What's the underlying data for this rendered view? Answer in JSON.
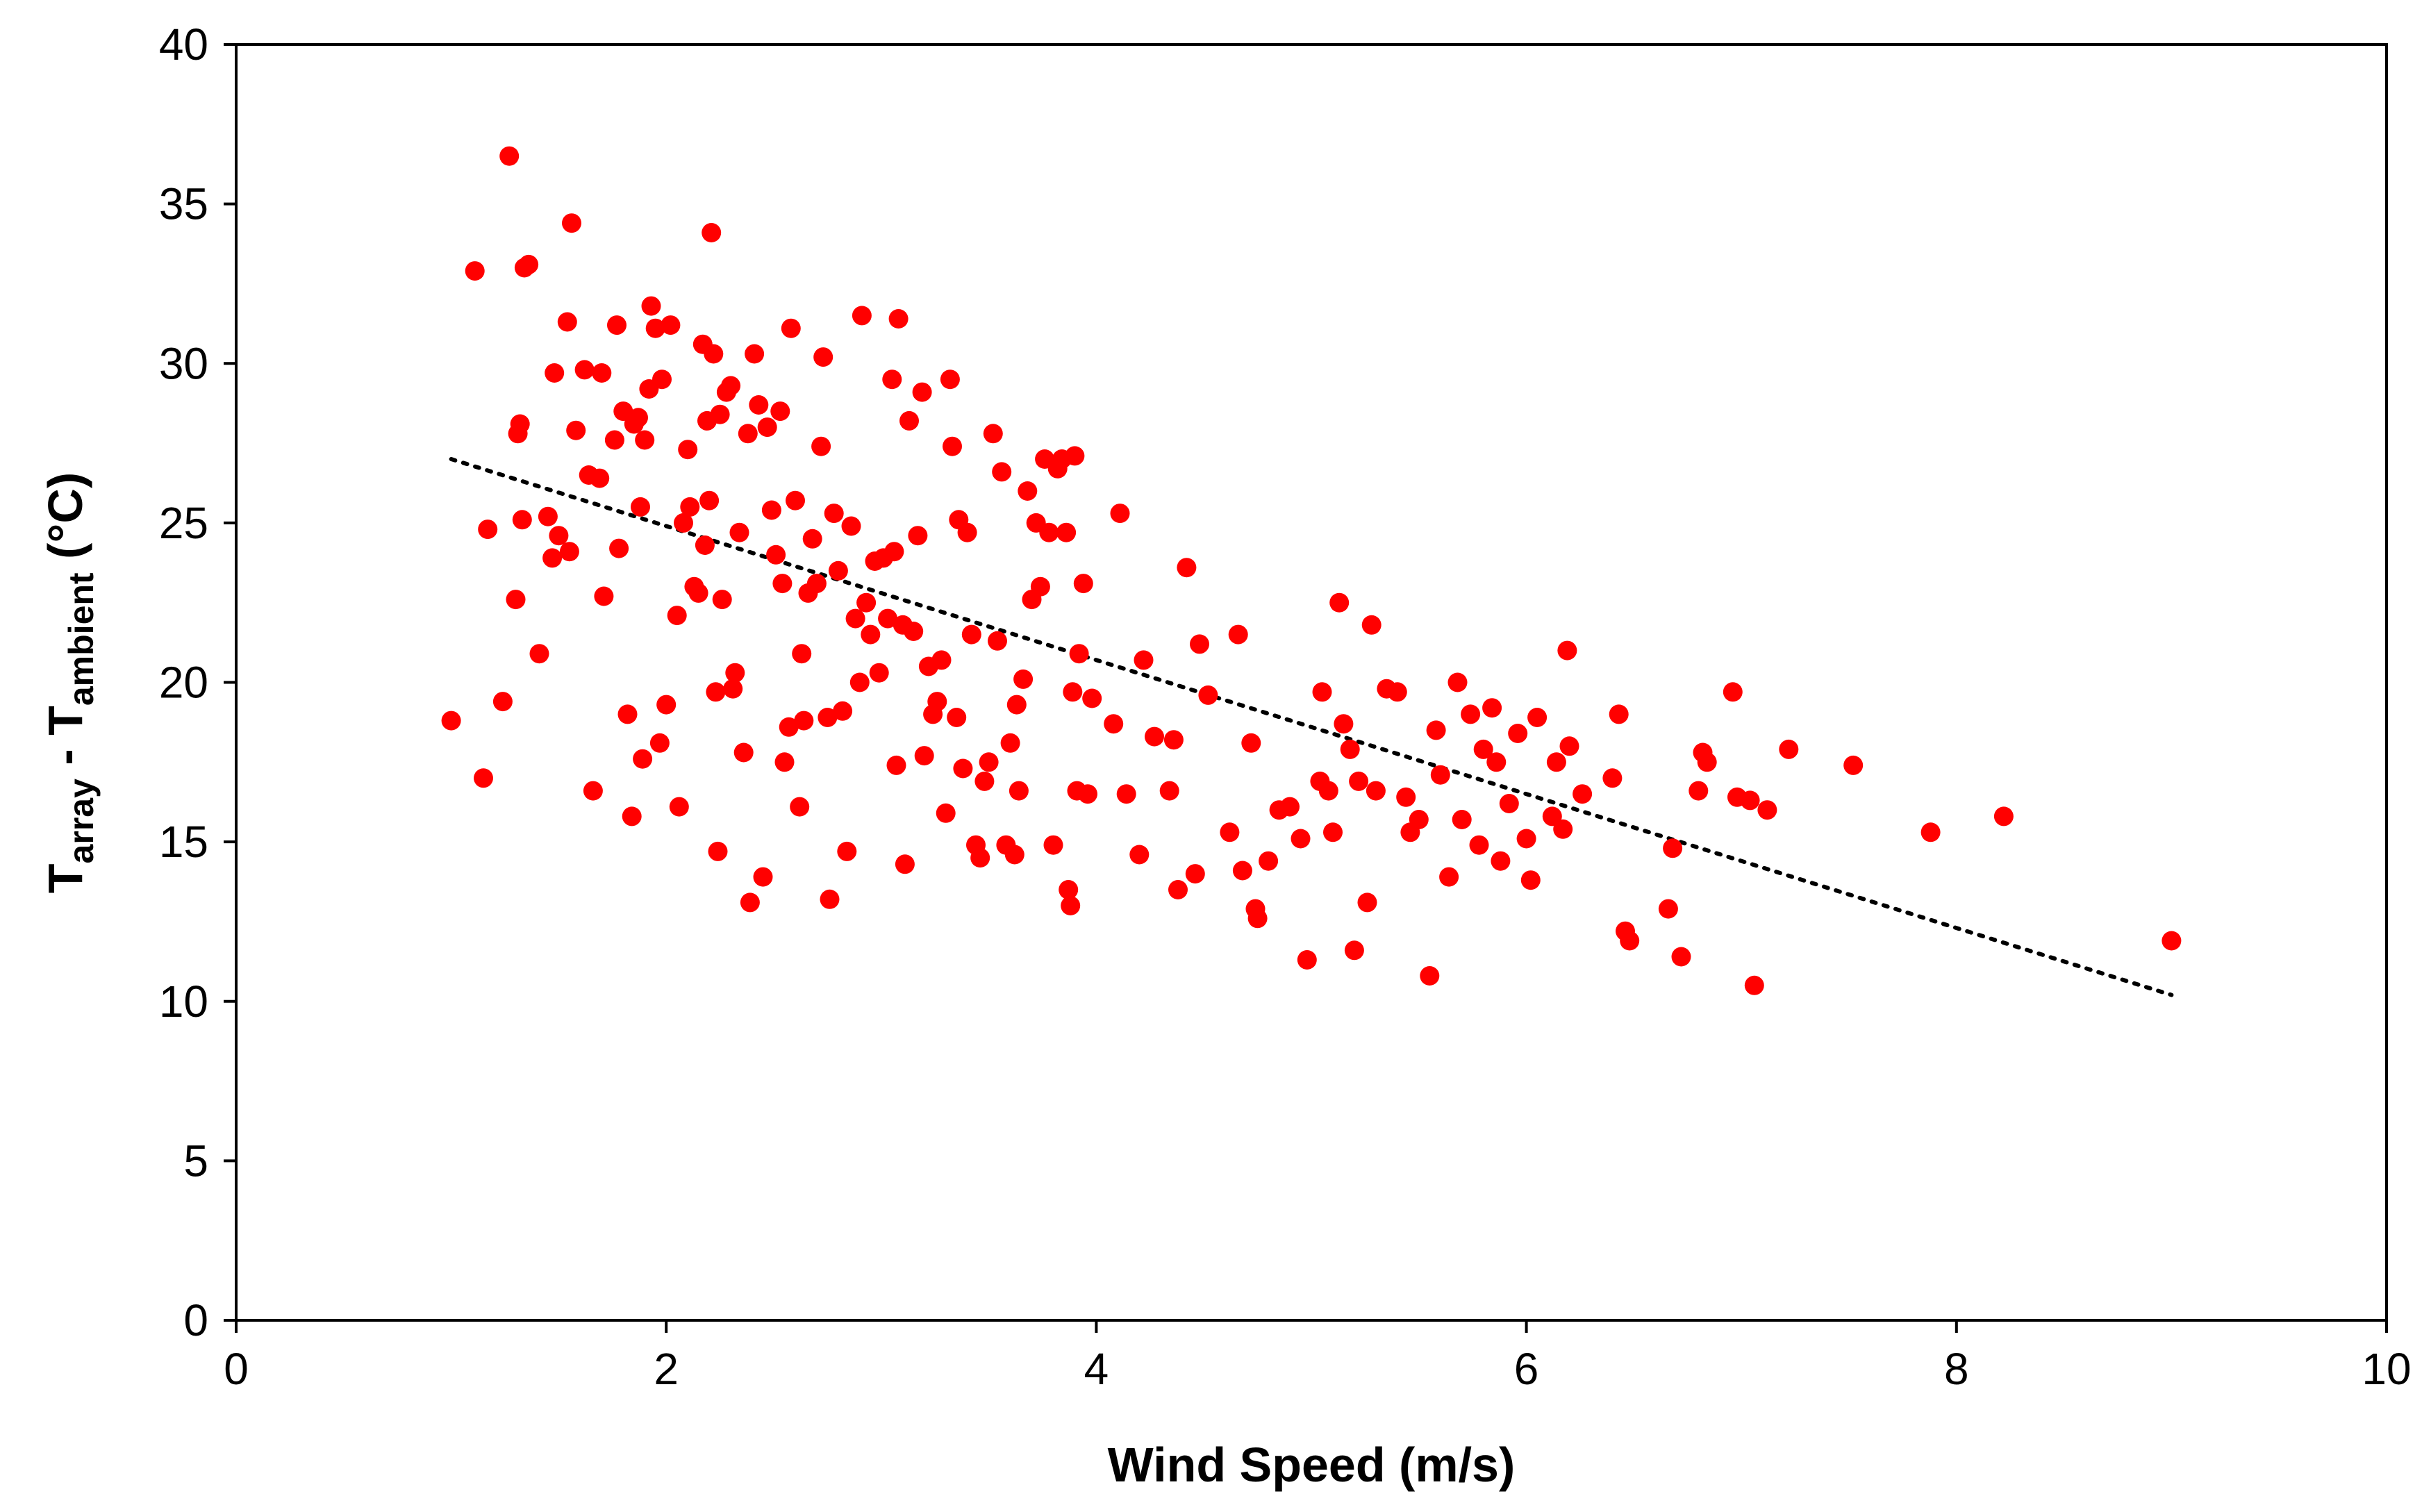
{
  "chart_data": {
    "type": "scatter",
    "xlabel": "Wind Speed (m/s)",
    "ylabel": {
      "parts": [
        {
          "text": "T",
          "sub": false
        },
        {
          "text": "array",
          "sub": true
        },
        {
          "text": " - T",
          "sub": false
        },
        {
          "text": "ambient",
          "sub": true
        },
        {
          "text": " (°C)",
          "sub": false
        }
      ]
    },
    "xlim": [
      0,
      10
    ],
    "ylim": [
      0,
      40
    ],
    "xticks": [
      "0",
      "2",
      "4",
      "6",
      "8",
      "10"
    ],
    "yticks": [
      "0",
      "5",
      "10",
      "15",
      "20",
      "25",
      "30",
      "35",
      "40"
    ],
    "grid": false,
    "legend": "none",
    "colors": {
      "points": "#ff0000",
      "trendline": "#000000"
    },
    "trendline": {
      "style": "dotted",
      "x": [
        1.0,
        9.0
      ],
      "y": [
        27.0,
        10.2
      ]
    },
    "series": [
      {
        "points": [
          [
            1.0,
            18.8
          ],
          [
            1.11,
            32.9
          ],
          [
            1.15,
            17.0
          ],
          [
            1.17,
            24.8
          ],
          [
            1.24,
            19.4
          ],
          [
            1.27,
            36.5
          ],
          [
            1.3,
            22.6
          ],
          [
            1.31,
            27.8
          ],
          [
            1.32,
            28.1
          ],
          [
            1.33,
            25.1
          ],
          [
            1.34,
            33.0
          ],
          [
            1.36,
            33.1
          ],
          [
            1.41,
            20.9
          ],
          [
            1.45,
            25.2
          ],
          [
            1.47,
            23.9
          ],
          [
            1.48,
            29.7
          ],
          [
            1.5,
            24.6
          ],
          [
            1.54,
            31.3
          ],
          [
            1.55,
            24.1
          ],
          [
            1.56,
            34.4
          ],
          [
            1.58,
            27.9
          ],
          [
            1.62,
            29.8
          ],
          [
            1.64,
            26.5
          ],
          [
            1.66,
            16.6
          ],
          [
            1.69,
            26.4
          ],
          [
            1.7,
            29.7
          ],
          [
            1.71,
            22.7
          ],
          [
            1.76,
            27.6
          ],
          [
            1.77,
            31.2
          ],
          [
            1.78,
            24.2
          ],
          [
            1.8,
            28.5
          ],
          [
            1.82,
            19.0
          ],
          [
            1.84,
            15.8
          ],
          [
            1.85,
            28.1
          ],
          [
            1.87,
            28.3
          ],
          [
            1.88,
            25.5
          ],
          [
            1.89,
            17.6
          ],
          [
            1.9,
            27.6
          ],
          [
            1.92,
            29.2
          ],
          [
            1.93,
            31.8
          ],
          [
            1.95,
            31.1
          ],
          [
            1.97,
            18.1
          ],
          [
            1.98,
            29.5
          ],
          [
            2.0,
            19.3
          ],
          [
            2.02,
            31.2
          ],
          [
            2.05,
            22.1
          ],
          [
            2.06,
            16.1
          ],
          [
            2.08,
            25.0
          ],
          [
            2.1,
            27.3
          ],
          [
            2.11,
            25.5
          ],
          [
            2.13,
            23.0
          ],
          [
            2.15,
            22.8
          ],
          [
            2.17,
            30.6
          ],
          [
            2.18,
            24.3
          ],
          [
            2.19,
            28.2
          ],
          [
            2.2,
            25.7
          ],
          [
            2.21,
            34.1
          ],
          [
            2.22,
            30.3
          ],
          [
            2.23,
            19.7
          ],
          [
            2.24,
            14.7
          ],
          [
            2.25,
            28.4
          ],
          [
            2.26,
            22.6
          ],
          [
            2.28,
            29.1
          ],
          [
            2.3,
            29.3
          ],
          [
            2.31,
            19.8
          ],
          [
            2.32,
            20.3
          ],
          [
            2.34,
            24.7
          ],
          [
            2.36,
            17.8
          ],
          [
            2.38,
            27.8
          ],
          [
            2.39,
            13.1
          ],
          [
            2.41,
            30.3
          ],
          [
            2.43,
            28.7
          ],
          [
            2.45,
            13.9
          ],
          [
            2.47,
            28.0
          ],
          [
            2.49,
            25.4
          ],
          [
            2.51,
            24.0
          ],
          [
            2.53,
            28.5
          ],
          [
            2.54,
            23.1
          ],
          [
            2.55,
            17.5
          ],
          [
            2.57,
            18.6
          ],
          [
            2.58,
            31.1
          ],
          [
            2.6,
            25.7
          ],
          [
            2.62,
            16.1
          ],
          [
            2.63,
            20.9
          ],
          [
            2.64,
            18.8
          ],
          [
            2.66,
            22.8
          ],
          [
            2.68,
            24.5
          ],
          [
            2.7,
            23.1
          ],
          [
            2.72,
            27.4
          ],
          [
            2.73,
            30.2
          ],
          [
            2.75,
            18.9
          ],
          [
            2.76,
            13.2
          ],
          [
            2.78,
            25.3
          ],
          [
            2.8,
            23.5
          ],
          [
            2.82,
            19.1
          ],
          [
            2.84,
            14.7
          ],
          [
            2.86,
            24.9
          ],
          [
            2.88,
            22.0
          ],
          [
            2.9,
            20.0
          ],
          [
            2.91,
            31.5
          ],
          [
            2.93,
            22.5
          ],
          [
            2.95,
            21.5
          ],
          [
            2.97,
            23.8
          ],
          [
            2.99,
            20.3
          ],
          [
            3.01,
            23.9
          ],
          [
            3.03,
            22.0
          ],
          [
            3.05,
            29.5
          ],
          [
            3.06,
            24.1
          ],
          [
            3.07,
            17.4
          ],
          [
            3.08,
            31.4
          ],
          [
            3.1,
            21.8
          ],
          [
            3.11,
            14.3
          ],
          [
            3.13,
            28.2
          ],
          [
            3.15,
            21.6
          ],
          [
            3.17,
            24.6
          ],
          [
            3.19,
            29.1
          ],
          [
            3.2,
            17.7
          ],
          [
            3.22,
            20.5
          ],
          [
            3.24,
            19.0
          ],
          [
            3.26,
            19.4
          ],
          [
            3.28,
            20.7
          ],
          [
            3.3,
            15.9
          ],
          [
            3.32,
            29.5
          ],
          [
            3.33,
            27.4
          ],
          [
            3.35,
            18.9
          ],
          [
            3.36,
            25.1
          ],
          [
            3.38,
            17.3
          ],
          [
            3.4,
            24.7
          ],
          [
            3.42,
            21.5
          ],
          [
            3.44,
            14.9
          ],
          [
            3.46,
            14.5
          ],
          [
            3.48,
            16.9
          ],
          [
            3.5,
            17.5
          ],
          [
            3.52,
            27.8
          ],
          [
            3.54,
            21.3
          ],
          [
            3.56,
            26.6
          ],
          [
            3.58,
            14.9
          ],
          [
            3.6,
            18.1
          ],
          [
            3.62,
            14.6
          ],
          [
            3.63,
            19.3
          ],
          [
            3.64,
            16.6
          ],
          [
            3.66,
            20.1
          ],
          [
            3.68,
            26.0
          ],
          [
            3.7,
            22.6
          ],
          [
            3.72,
            25.0
          ],
          [
            3.74,
            23.0
          ],
          [
            3.76,
            27.0
          ],
          [
            3.78,
            24.7
          ],
          [
            3.8,
            14.9
          ],
          [
            3.82,
            26.7
          ],
          [
            3.84,
            27.0
          ],
          [
            3.86,
            24.7
          ],
          [
            3.87,
            13.5
          ],
          [
            3.88,
            13.0
          ],
          [
            3.89,
            19.7
          ],
          [
            3.9,
            27.1
          ],
          [
            3.91,
            16.6
          ],
          [
            3.92,
            20.9
          ],
          [
            3.94,
            23.1
          ],
          [
            3.96,
            16.5
          ],
          [
            3.98,
            19.5
          ],
          [
            4.08,
            18.7
          ],
          [
            4.11,
            25.3
          ],
          [
            4.14,
            16.5
          ],
          [
            4.2,
            14.6
          ],
          [
            4.22,
            20.7
          ],
          [
            4.27,
            18.3
          ],
          [
            4.34,
            16.6
          ],
          [
            4.36,
            18.2
          ],
          [
            4.38,
            13.5
          ],
          [
            4.42,
            23.6
          ],
          [
            4.46,
            14.0
          ],
          [
            4.48,
            21.2
          ],
          [
            4.52,
            19.6
          ],
          [
            4.62,
            15.3
          ],
          [
            4.66,
            21.5
          ],
          [
            4.68,
            14.1
          ],
          [
            4.72,
            18.1
          ],
          [
            4.74,
            12.9
          ],
          [
            4.75,
            12.6
          ],
          [
            4.8,
            14.4
          ],
          [
            4.85,
            16.0
          ],
          [
            4.9,
            16.1
          ],
          [
            4.95,
            15.1
          ],
          [
            4.98,
            11.3
          ],
          [
            5.04,
            16.9
          ],
          [
            5.05,
            19.7
          ],
          [
            5.08,
            16.6
          ],
          [
            5.1,
            15.3
          ],
          [
            5.13,
            22.5
          ],
          [
            5.15,
            18.7
          ],
          [
            5.18,
            17.9
          ],
          [
            5.2,
            11.6
          ],
          [
            5.22,
            16.9
          ],
          [
            5.26,
            13.1
          ],
          [
            5.28,
            21.8
          ],
          [
            5.3,
            16.6
          ],
          [
            5.35,
            19.8
          ],
          [
            5.4,
            19.7
          ],
          [
            5.44,
            16.4
          ],
          [
            5.46,
            15.3
          ],
          [
            5.5,
            15.7
          ],
          [
            5.55,
            10.8
          ],
          [
            5.58,
            18.5
          ],
          [
            5.6,
            17.1
          ],
          [
            5.64,
            13.9
          ],
          [
            5.68,
            20.0
          ],
          [
            5.7,
            15.7
          ],
          [
            5.74,
            19.0
          ],
          [
            5.78,
            14.9
          ],
          [
            5.8,
            17.9
          ],
          [
            5.84,
            19.2
          ],
          [
            5.86,
            17.5
          ],
          [
            5.88,
            14.4
          ],
          [
            5.92,
            16.2
          ],
          [
            5.96,
            18.4
          ],
          [
            6.0,
            15.1
          ],
          [
            6.02,
            13.8
          ],
          [
            6.05,
            18.9
          ],
          [
            6.12,
            15.8
          ],
          [
            6.14,
            17.5
          ],
          [
            6.17,
            15.4
          ],
          [
            6.19,
            21.0
          ],
          [
            6.2,
            18.0
          ],
          [
            6.26,
            16.5
          ],
          [
            6.4,
            17.0
          ],
          [
            6.43,
            19.0
          ],
          [
            6.46,
            12.2
          ],
          [
            6.48,
            11.9
          ],
          [
            6.66,
            12.9
          ],
          [
            6.68,
            14.8
          ],
          [
            6.72,
            11.4
          ],
          [
            6.8,
            16.6
          ],
          [
            6.82,
            17.8
          ],
          [
            6.84,
            17.5
          ],
          [
            6.96,
            19.7
          ],
          [
            6.98,
            16.4
          ],
          [
            7.04,
            16.3
          ],
          [
            7.06,
            10.5
          ],
          [
            7.12,
            16.0
          ],
          [
            7.22,
            17.9
          ],
          [
            7.52,
            17.4
          ],
          [
            7.88,
            15.3
          ],
          [
            8.22,
            15.8
          ],
          [
            9.0,
            11.9
          ]
        ]
      }
    ]
  }
}
